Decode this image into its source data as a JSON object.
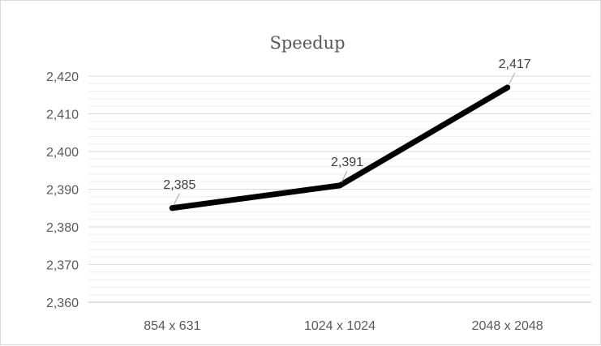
{
  "chart_data": {
    "type": "line",
    "title": "Speedup",
    "xlabel": "",
    "ylabel": "",
    "categories": [
      "854 x 631",
      "1024 x 1024",
      "2048 x 2048"
    ],
    "series": [
      {
        "values": [
          2.385,
          2.391,
          2.417
        ],
        "labels": [
          "2,385",
          "2,391",
          "2,417"
        ],
        "color": "#000000"
      }
    ],
    "ylim": [
      2.36,
      2.42
    ],
    "yticks": [
      2.36,
      2.37,
      2.38,
      2.39,
      2.4,
      2.41,
      2.42
    ],
    "ytick_labels": [
      "2,360",
      "2,370",
      "2,380",
      "2,390",
      "2,400",
      "2,410",
      "2,420"
    ],
    "minor_gridlines": true,
    "grid_color": "#d9d9d9",
    "legend": "none"
  }
}
